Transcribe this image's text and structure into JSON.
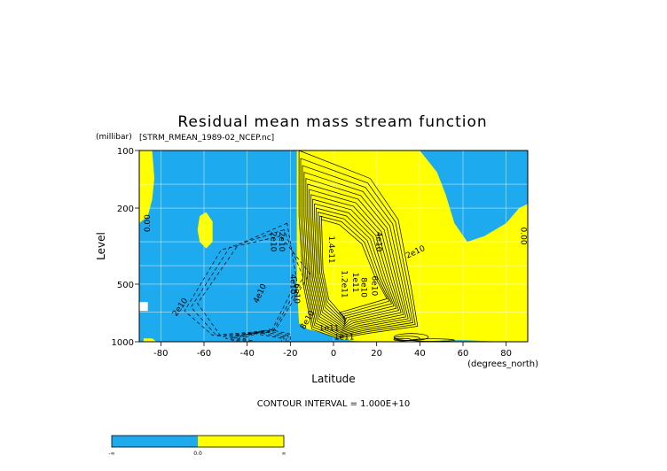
{
  "chart_data": {
    "type": "heatmap",
    "title": "Residual mean mass stream function",
    "subtitle": "[STRM_RMEAN_1989-02_NCEP.nc]",
    "xlabel": "Latitude",
    "xunits": "(degrees_north)",
    "ylabel": "Level",
    "yunits": "(millibar)",
    "xlim": [
      -90,
      90
    ],
    "ylim": [
      1000,
      100
    ],
    "yscale": "log",
    "xticks": [
      -80,
      -60,
      -40,
      -20,
      0,
      20,
      40,
      60,
      80
    ],
    "yticks": [
      100,
      200,
      500,
      1000
    ],
    "grid": true,
    "colors": {
      "negative": "#1eaaee",
      "positive": "#ffff00",
      "missing": "#ffffff"
    },
    "contour_labels": [
      {
        "text": "0.00",
        "lat": -86,
        "p": 240,
        "angle": -90
      },
      {
        "text": "0.00",
        "lat": 88,
        "p": 280,
        "angle": 90
      },
      {
        "text": "2e10",
        "lat": -71,
        "p": 660,
        "angle": -55
      },
      {
        "text": "4e10",
        "lat": -34,
        "p": 560,
        "angle": -65
      },
      {
        "text": "2e10",
        "lat": -28,
        "p": 300,
        "angle": 90
      },
      {
        "text": "2e10",
        "lat": -24,
        "p": 300,
        "angle": 90
      },
      {
        "text": "4e10",
        "lat": -19,
        "p": 500,
        "angle": 90
      },
      {
        "text": "6e10",
        "lat": -17,
        "p": 560,
        "angle": 90
      },
      {
        "text": "8e10",
        "lat": -12,
        "p": 770,
        "angle": -60
      },
      {
        "text": "1e11",
        "lat": -2,
        "p": 850,
        "angle": 0
      },
      {
        "text": "1.4e11",
        "lat": -1,
        "p": 330,
        "angle": 90
      },
      {
        "text": "1.2e11",
        "lat": 5,
        "p": 500,
        "angle": 90
      },
      {
        "text": "1e11",
        "lat": 10,
        "p": 490,
        "angle": 90
      },
      {
        "text": "8e10",
        "lat": 14,
        "p": 520,
        "angle": 90
      },
      {
        "text": "6e10",
        "lat": 19,
        "p": 510,
        "angle": 90
      },
      {
        "text": "4e10",
        "lat": 21,
        "p": 300,
        "angle": 90
      },
      {
        "text": "2e10",
        "lat": 38,
        "p": 340,
        "angle": -25
      },
      {
        "text": "1e11",
        "lat": 5,
        "p": 950,
        "angle": 0
      }
    ],
    "colorbar": {
      "labels": [
        "-∞",
        "0.0",
        "∞"
      ]
    },
    "contour_interval": "CONTOUR INTERVAL = 1.000E+10"
  }
}
